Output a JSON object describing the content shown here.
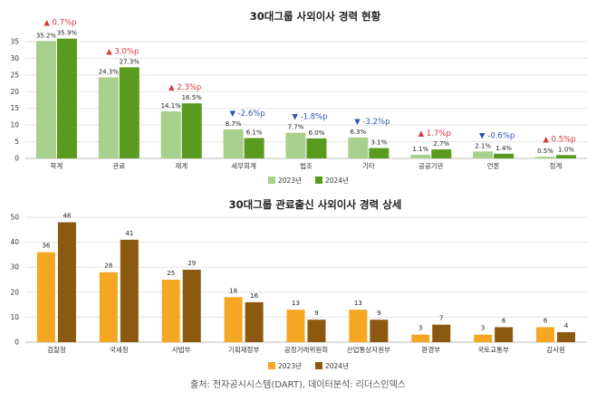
{
  "chart_data": [
    {
      "type": "bar",
      "title": "30대그룹 사외이사 경력 현황",
      "categories": [
        "학계",
        "관료",
        "재계",
        "세무회계",
        "법조",
        "기타",
        "공공기관",
        "언론",
        "정계"
      ],
      "series": [
        {
          "name": "2023년",
          "values": [
            35.2,
            24.3,
            14.1,
            8.7,
            7.7,
            6.3,
            1.1,
            2.1,
            0.5
          ],
          "labels": [
            "35.2%",
            "24.3%",
            "14.1%",
            "8.7%",
            "7.7%",
            "6.3%",
            "1.1%",
            "2.1%",
            "0.5%"
          ],
          "color": "#a8d08d"
        },
        {
          "name": "2024년",
          "values": [
            35.9,
            27.3,
            16.5,
            6.1,
            6.0,
            3.1,
            2.7,
            1.4,
            1.0
          ],
          "labels": [
            "35.9%",
            "27.3%",
            "16.5%",
            "6.1%",
            "6.0%",
            "3.1%",
            "2.7%",
            "1.4%",
            "1.0%"
          ],
          "color": "#5a9a1f"
        }
      ],
      "changes": [
        {
          "text": "▲ 0.7%p",
          "dir": "up"
        },
        {
          "text": "▲ 3.0%p",
          "dir": "up"
        },
        {
          "text": "▲ 2.3%p",
          "dir": "up"
        },
        {
          "text": "▼ -2.6%p",
          "dir": "down"
        },
        {
          "text": "▼ -1.8%p",
          "dir": "down"
        },
        {
          "text": "▼ -3.2%p",
          "dir": "down"
        },
        {
          "text": "▲ 1.7%p",
          "dir": "up"
        },
        {
          "text": "▼ -0.6%p",
          "dir": "down"
        },
        {
          "text": "▲ 0.5%p",
          "dir": "up"
        }
      ],
      "ylim": [
        0,
        35
      ],
      "yticks": [
        0,
        5,
        10,
        15,
        20,
        25,
        30,
        35
      ],
      "grid": true,
      "legend": "bottom-center"
    },
    {
      "type": "bar",
      "title": "30대그룹 관료출신 사외이사 경력 상세",
      "categories": [
        "검찰청",
        "국세청",
        "사법부",
        "기획재정부",
        "공정거래위원회",
        "산업통상자원부",
        "환경부",
        "국토교통부",
        "감사원"
      ],
      "series": [
        {
          "name": "2023년",
          "values": [
            36,
            28,
            25,
            18,
            13,
            13,
            3,
            3,
            6
          ],
          "labels": [
            "36",
            "28",
            "25",
            "18",
            "13",
            "13",
            "3",
            "3",
            "6"
          ],
          "color": "#f5a623"
        },
        {
          "name": "2024년",
          "values": [
            48,
            41,
            29,
            16,
            9,
            9,
            7,
            6,
            4
          ],
          "labels": [
            "48",
            "41",
            "29",
            "16",
            "9",
            "9",
            "7",
            "6",
            "4"
          ],
          "color": "#8b5a10"
        }
      ],
      "ylim": [
        0,
        50
      ],
      "yticks": [
        0,
        10,
        20,
        30,
        40,
        50
      ],
      "grid": true,
      "legend": "bottom-center"
    }
  ],
  "colors": {
    "up": "#d9363e",
    "down": "#2b56b8"
  },
  "source": "출처: 전자공시시스템(DART), 데이터분석: 리더스인덱스"
}
